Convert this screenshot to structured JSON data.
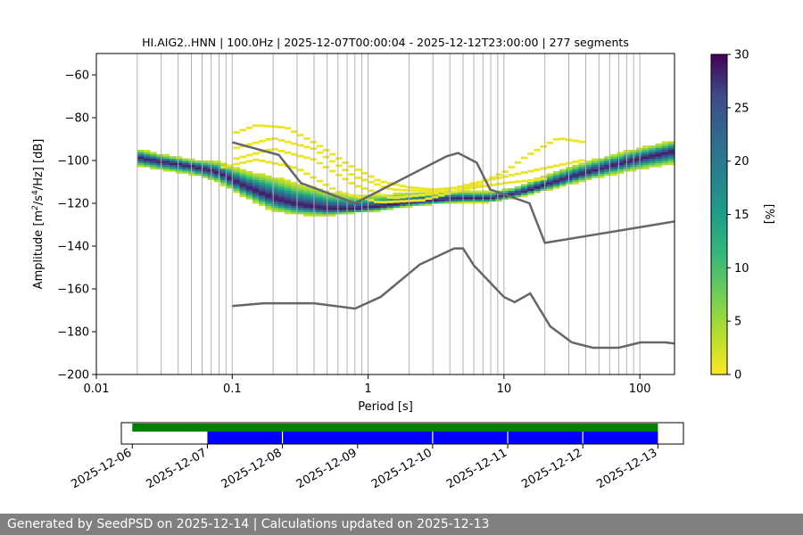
{
  "chart_data": [
    {
      "type": "heatmap",
      "title": "HI.AIG2..HNN | 100.0Hz | 2025-12-07T00:00:04 - 2025-12-12T23:00:00 | 277 segments",
      "xlabel": "Period [s]",
      "ylabel_parts": [
        "Amplitude [m",
        "2",
        "/s",
        "4",
        "/Hz] [dB]"
      ],
      "x_scale": "log",
      "xlim": [
        0.01,
        180
      ],
      "ylim": [
        -200,
        -50
      ],
      "x_ticks": [
        0.01,
        0.1,
        1,
        10,
        100
      ],
      "x_tick_labels": [
        "0.01",
        "0.1",
        "1",
        "10",
        "100"
      ],
      "y_ticks": [
        -200,
        -180,
        -160,
        -140,
        -120,
        -100,
        -80,
        -60
      ],
      "y_tick_labels": [
        "−200",
        "−180",
        "−160",
        "−140",
        "−120",
        "−100",
        "−80",
        "−60"
      ],
      "grid": true,
      "colormap": "viridis_r",
      "colorbar": {
        "label": "[%]",
        "range": [
          0,
          30
        ],
        "ticks": [
          0,
          5,
          10,
          15,
          20,
          25,
          30
        ],
        "tick_labels": [
          "0",
          "5",
          "10",
          "15",
          "20",
          "25",
          "30"
        ]
      },
      "pdf_mode_curve": {
        "x": [
          0.02,
          0.03,
          0.05,
          0.08,
          0.12,
          0.2,
          0.3,
          0.5,
          0.8,
          1.2,
          2,
          3,
          5,
          8,
          12,
          20,
          40,
          80,
          180
        ],
        "y": [
          -99,
          -101,
          -103,
          -106,
          -112,
          -118,
          -121,
          -123,
          -123,
          -122,
          -120,
          -119,
          -118,
          -118,
          -116,
          -112,
          -106,
          -101,
          -96
        ]
      },
      "pdf_spread": {
        "x": [
          0.02,
          0.05,
          0.1,
          0.2,
          0.4,
          0.8,
          1.5,
          3,
          6,
          12,
          25,
          50,
          100,
          180
        ],
        "upper_dB": [
          4,
          3,
          6,
          10,
          9,
          6,
          5,
          4,
          3,
          3,
          5,
          5,
          5,
          5
        ],
        "lower_dB": [
          4,
          4,
          5,
          6,
          4,
          2,
          2,
          2,
          2,
          2,
          3,
          4,
          5,
          6
        ]
      },
      "sporadic_curves": [
        {
          "x": [
            0.1,
            0.15,
            0.25,
            0.4,
            0.7,
            1.2,
            2,
            3,
            5,
            7
          ],
          "y": [
            -88,
            -84,
            -85,
            -92,
            -102,
            -110,
            -113,
            -114,
            -113,
            -112
          ]
        },
        {
          "x": [
            0.1,
            0.2,
            0.4,
            0.8,
            1.5,
            3,
            6,
            10,
            15,
            25,
            40
          ],
          "y": [
            -95,
            -90,
            -95,
            -108,
            -114,
            -115,
            -112,
            -106,
            -98,
            -90,
            -92
          ]
        },
        {
          "x": [
            0.1,
            0.2,
            0.4,
            0.8,
            1.5,
            3,
            6,
            10,
            20,
            40
          ],
          "y": [
            -100,
            -95,
            -100,
            -112,
            -118,
            -116,
            -111,
            -108,
            -104,
            -100
          ]
        },
        {
          "x": [
            0.08,
            0.15,
            0.3,
            0.6,
            1.2,
            2.5,
            5,
            10,
            20
          ],
          "y": [
            -104,
            -100,
            -104,
            -115,
            -120,
            -119,
            -114,
            -111,
            -109
          ]
        }
      ],
      "nhnm": {
        "x": [
          0.1,
          0.22,
          0.32,
          0.8,
          3.8,
          4.6,
          6.3,
          7.9,
          15.4,
          20,
          180
        ],
        "y": [
          -91.5,
          -97.4,
          -110.5,
          -120,
          -98,
          -96.5,
          -101,
          -113.5,
          -120,
          -138.5,
          -128.5
        ]
      },
      "nlnm": {
        "x": [
          0.1,
          0.17,
          0.4,
          0.8,
          1.24,
          2.4,
          4.3,
          5,
          6,
          10,
          12,
          15.6,
          21.9,
          31.6,
          45,
          70,
          101,
          154,
          180
        ],
        "y": [
          -168,
          -166.7,
          -166.7,
          -169.2,
          -163.7,
          -148.6,
          -141.1,
          -141.1,
          -149,
          -163.8,
          -166.2,
          -162.1,
          -177.5,
          -185,
          -187.5,
          -187.5,
          -185,
          -185,
          -185.5
        ]
      }
    },
    {
      "type": "timeline",
      "x_type": "date",
      "xlim": [
        "2025-12-05T20:30",
        "2025-12-13T08:10"
      ],
      "x_ticks": [
        "2025-12-06",
        "2025-12-07",
        "2025-12-08",
        "2025-12-09",
        "2025-12-10",
        "2025-12-11",
        "2025-12-12",
        "2025-12-13"
      ],
      "x_tick_labels": [
        "2025-12-06",
        "2025-12-07",
        "2025-12-08",
        "2025-12-09",
        "2025-12-10",
        "2025-12-11",
        "2025-12-12",
        "2025-12-13"
      ],
      "data_availability": {
        "start": "2025-12-06T00:00",
        "end": "2025-12-13T00:00",
        "color": "#008000"
      },
      "psd_segments": [
        {
          "start": "2025-12-07T00:00",
          "end": "2025-12-07T23:50",
          "color": "#0000ff"
        },
        {
          "start": "2025-12-08T00:10",
          "end": "2025-12-09T23:50",
          "color": "#0000ff"
        },
        {
          "start": "2025-12-10T00:10",
          "end": "2025-12-10T23:50",
          "color": "#0000ff"
        },
        {
          "start": "2025-12-11T00:10",
          "end": "2025-12-11T23:50",
          "color": "#0000ff"
        },
        {
          "start": "2025-12-12T00:10",
          "end": "2025-12-13T00:00",
          "color": "#0000ff"
        }
      ]
    }
  ],
  "footer": {
    "text": "Generated by SeedPSD on 2025-12-14 | Calculations updated on 2025-12-13"
  },
  "colors": {
    "noise_model_line": "#666666",
    "grid": "#b0b0b0",
    "footer_bg": "#808080"
  }
}
